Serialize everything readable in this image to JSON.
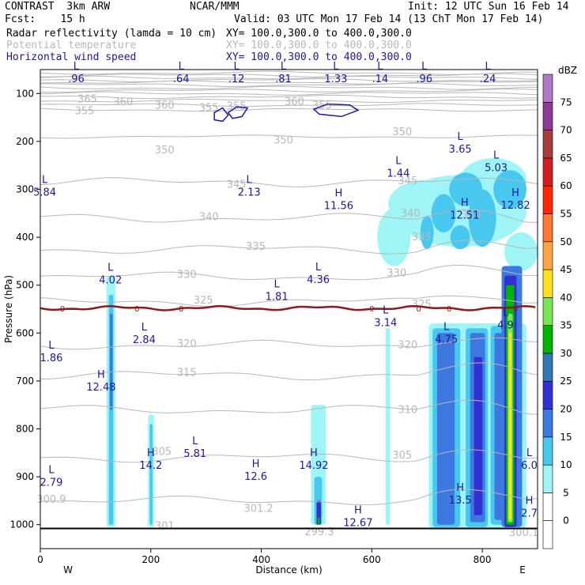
{
  "header": {
    "model": "CONTRAST  3km ARW",
    "org": "NCAR/MMM",
    "init": "Init: 12 UTC Sun 16 Feb 14",
    "fcst": "Fcst:    15 h",
    "valid": "Valid: 03 UTC Mon 17 Feb 14 (13 ChT Mon 17 Feb 14)",
    "fields": [
      {
        "label": "Radar reflectivity (lamda = 10 cm)",
        "xy": "XY= 100.0,300.0 to 400.0,300.0",
        "color": "#000000"
      },
      {
        "label": "Potential temperature",
        "xy": "XY= 100.0,300.0 to 400.0,300.0",
        "color": "#b8b8b8"
      },
      {
        "label": "Horizontal wind speed",
        "xy": "XY= 100.0,300.0 to 400.0,300.0",
        "color": "#1a1a9a"
      }
    ]
  },
  "chart_data": {
    "type": "contour-cross-section",
    "xlabel": "Distance (km)",
    "ylabel": "Pressure (hPa)",
    "xlim": [
      0,
      900
    ],
    "ylim": [
      1050,
      50
    ],
    "x_ticks": [
      0,
      200,
      400,
      600,
      800
    ],
    "y_ticks": [
      100,
      200,
      300,
      400,
      500,
      600,
      700,
      800,
      900,
      1000
    ],
    "x_end_labels": {
      "left": "W",
      "right": "E"
    },
    "colorbar": {
      "unit": "dBZ",
      "levels": [
        {
          "value": 0,
          "color": "#ffffff"
        },
        {
          "value": 5,
          "color": "#9ff5f5"
        },
        {
          "value": 10,
          "color": "#48c8ef"
        },
        {
          "value": 15,
          "color": "#3c78e0"
        },
        {
          "value": 20,
          "color": "#3232d2"
        },
        {
          "value": 25,
          "color": "#3278b4"
        },
        {
          "value": 30,
          "color": "#00b400"
        },
        {
          "value": 35,
          "color": "#78e650"
        },
        {
          "value": 40,
          "color": "#ffe11e"
        },
        {
          "value": 45,
          "color": "#ffa546"
        },
        {
          "value": 50,
          "color": "#ff7832"
        },
        {
          "value": 55,
          "color": "#ff2800"
        },
        {
          "value": 60,
          "color": "#d21e1e"
        },
        {
          "value": 65,
          "color": "#aa3c3c"
        },
        {
          "value": 70,
          "color": "#8c3c96"
        },
        {
          "value": 75,
          "color": "#b478c8"
        }
      ]
    },
    "theta_labels": [
      {
        "x": 85,
        "p": 112,
        "text": "365"
      },
      {
        "x": 150,
        "p": 118,
        "text": "360"
      },
      {
        "x": 80,
        "p": 137,
        "text": "355"
      },
      {
        "x": 305,
        "p": 130,
        "text": "355"
      },
      {
        "x": 355,
        "p": 127,
        "text": "355"
      },
      {
        "x": 460,
        "p": 118,
        "text": "360"
      },
      {
        "x": 510,
        "p": 125,
        "text": "355"
      },
      {
        "x": 225,
        "p": 125,
        "text": "360"
      },
      {
        "x": 225,
        "p": 218,
        "text": "350"
      },
      {
        "x": 440,
        "p": 198,
        "text": "350"
      },
      {
        "x": 655,
        "p": 180,
        "text": "350"
      },
      {
        "x": 355,
        "p": 290,
        "text": "345"
      },
      {
        "x": 665,
        "p": 283,
        "text": "345"
      },
      {
        "x": 305,
        "p": 358,
        "text": "340"
      },
      {
        "x": 670,
        "p": 350,
        "text": "340"
      },
      {
        "x": 780,
        "p": 354,
        "text": "340"
      },
      {
        "x": 390,
        "p": 420,
        "text": "335"
      },
      {
        "x": 690,
        "p": 400,
        "text": "335"
      },
      {
        "x": 265,
        "p": 478,
        "text": "330"
      },
      {
        "x": 645,
        "p": 475,
        "text": "330"
      },
      {
        "x": 295,
        "p": 532,
        "text": "325"
      },
      {
        "x": 690,
        "p": 540,
        "text": "325"
      },
      {
        "x": 265,
        "p": 623,
        "text": "320"
      },
      {
        "x": 665,
        "p": 625,
        "text": "320"
      },
      {
        "x": 265,
        "p": 683,
        "text": "315"
      },
      {
        "x": 665,
        "p": 760,
        "text": "310"
      },
      {
        "x": 220,
        "p": 848,
        "text": "305"
      },
      {
        "x": 655,
        "p": 855,
        "text": "305"
      },
      {
        "x": 20,
        "p": 948,
        "text": "300.9"
      },
      {
        "x": 395,
        "p": 967,
        "text": "301.2"
      },
      {
        "x": 225,
        "p": 1003,
        "text": "301"
      },
      {
        "x": 505,
        "p": 1015,
        "text": "299.3"
      },
      {
        "x": 875,
        "p": 1017,
        "text": "300.1"
      }
    ],
    "wind_extrema": [
      {
        "x": 65,
        "p": 63,
        "kind": "L",
        "value": ".96"
      },
      {
        "x": 255,
        "p": 63,
        "kind": "L",
        "value": ".64"
      },
      {
        "x": 355,
        "p": 63,
        "kind": "L",
        "value": ".12"
      },
      {
        "x": 440,
        "p": 63,
        "kind": "L",
        "value": ".81"
      },
      {
        "x": 535,
        "p": 63,
        "kind": "L",
        "value": "1.33"
      },
      {
        "x": 615,
        "p": 63,
        "kind": "L",
        "value": ".14"
      },
      {
        "x": 695,
        "p": 63,
        "kind": "L",
        "value": ".96"
      },
      {
        "x": 810,
        "p": 63,
        "kind": "L",
        "value": ".24"
      },
      {
        "x": 760,
        "p": 210,
        "kind": "L",
        "value": "3.65"
      },
      {
        "x": 825,
        "p": 249,
        "kind": "L",
        "value": "5.03"
      },
      {
        "x": 648,
        "p": 260,
        "kind": "L",
        "value": "1.44"
      },
      {
        "x": 8,
        "p": 300,
        "kind": "L",
        "value": "5.84"
      },
      {
        "x": 378,
        "p": 300,
        "kind": "L",
        "value": "2.13"
      },
      {
        "x": 540,
        "p": 328,
        "kind": "H",
        "value": "11.56"
      },
      {
        "x": 768,
        "p": 348,
        "kind": "H",
        "value": "12.51"
      },
      {
        "x": 860,
        "p": 327,
        "kind": "H",
        "value": "12.82"
      },
      {
        "x": 127,
        "p": 483,
        "kind": "L",
        "value": "4.02"
      },
      {
        "x": 503,
        "p": 482,
        "kind": "L",
        "value": "4.36"
      },
      {
        "x": 428,
        "p": 518,
        "kind": "L",
        "value": "1.81"
      },
      {
        "x": 625,
        "p": 572,
        "kind": "L",
        "value": "3.14"
      },
      {
        "x": 842,
        "p": 577,
        "kind": "L",
        "value": "4.9"
      },
      {
        "x": 188,
        "p": 608,
        "kind": "L",
        "value": "2.84"
      },
      {
        "x": 735,
        "p": 607,
        "kind": "L",
        "value": "4.75"
      },
      {
        "x": 20,
        "p": 646,
        "kind": "L",
        "value": "1.86"
      },
      {
        "x": 110,
        "p": 707,
        "kind": "H",
        "value": "12.48"
      },
      {
        "x": 280,
        "p": 845,
        "kind": "L",
        "value": "5.81"
      },
      {
        "x": 200,
        "p": 870,
        "kind": "H",
        "value": "14.2"
      },
      {
        "x": 495,
        "p": 870,
        "kind": "H",
        "value": "14.92"
      },
      {
        "x": 885,
        "p": 870,
        "kind": "L",
        "value": "6.0"
      },
      {
        "x": 390,
        "p": 893,
        "kind": "H",
        "value": "12.6"
      },
      {
        "x": 20,
        "p": 906,
        "kind": "L",
        "value": "2.79"
      },
      {
        "x": 760,
        "p": 943,
        "kind": "H",
        "value": "13.5"
      },
      {
        "x": 885,
        "p": 970,
        "kind": "H",
        "value": "2.7"
      },
      {
        "x": 575,
        "p": 990,
        "kind": "H",
        "value": "12.67"
      }
    ],
    "freezing_level": {
      "label": "0",
      "p": 548
    }
  }
}
